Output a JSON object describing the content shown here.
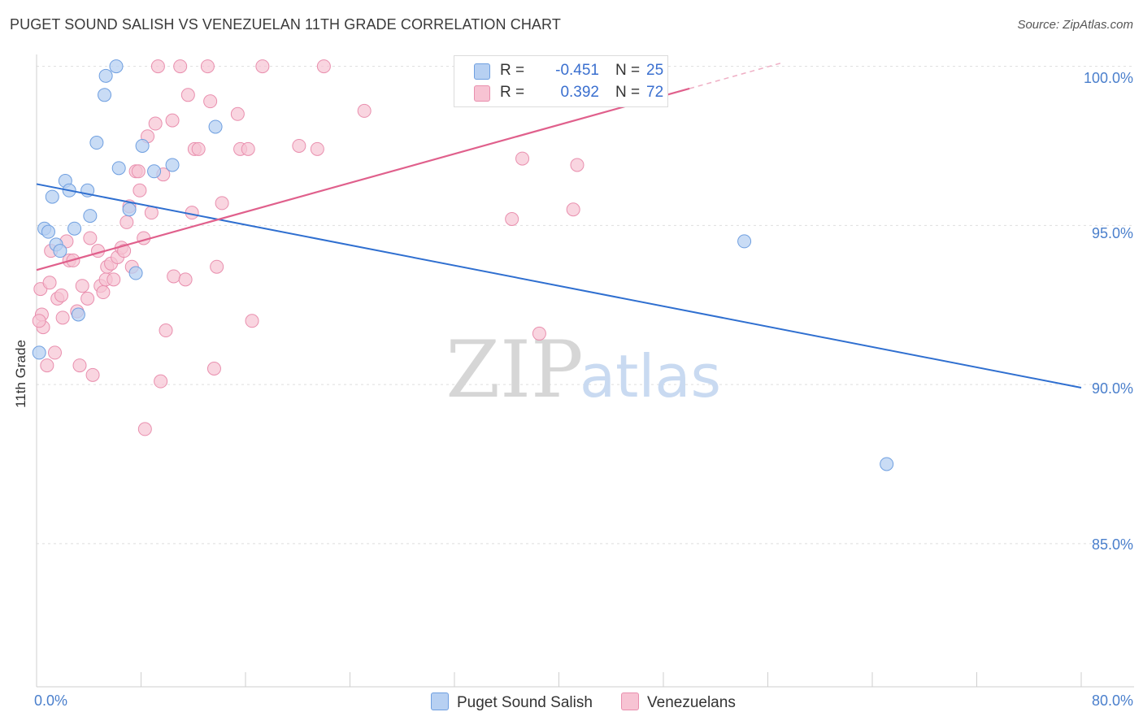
{
  "title": "PUGET SOUND SALISH VS VENEZUELAN 11TH GRADE CORRELATION CHART",
  "source": "Source: ZipAtlas.com",
  "watermark": {
    "zip": "ZIP",
    "atlas": "atlas"
  },
  "colors": {
    "blue_fill": "#b7d0f2",
    "blue_stroke": "#6f9fe0",
    "blue_line": "#2f6fd0",
    "pink_fill": "#f7c3d3",
    "pink_stroke": "#e98fae",
    "pink_line": "#e0608c",
    "text_blue": "#3a6fcf"
  },
  "legend": {
    "series1": {
      "r_label": "R =",
      "r_value": "-0.451",
      "n_label": "N =",
      "n_value": "25"
    },
    "series2": {
      "r_label": "R =",
      "r_value": "0.392",
      "n_label": "N =",
      "n_value": "72"
    }
  },
  "bottom_legend": {
    "series1": "Puget Sound Salish",
    "series2": "Venezuelans"
  },
  "chart_data": {
    "type": "scatter",
    "title": "PUGET SOUND SALISH VS VENEZUELAN 11TH GRADE CORRELATION CHART",
    "xlabel": "",
    "ylabel": "11th Grade",
    "xlim": [
      0,
      80
    ],
    "ylim": [
      80.5,
      100.5
    ],
    "x_tick_labels": [
      "0.0%",
      "80.0%"
    ],
    "y_ticks": [
      85,
      90,
      95,
      100
    ],
    "y_tick_labels": [
      "85.0%",
      "90.0%",
      "95.0%",
      "100.0%"
    ],
    "series": [
      {
        "name": "Puget Sound Salish",
        "r": -0.451,
        "n": 25,
        "trend": {
          "x": [
            0,
            80
          ],
          "y": [
            96.3,
            89.9
          ]
        },
        "points": [
          [
            0.2,
            91.0
          ],
          [
            0.6,
            94.9
          ],
          [
            0.9,
            94.8
          ],
          [
            1.2,
            95.9
          ],
          [
            1.5,
            94.4
          ],
          [
            1.8,
            94.2
          ],
          [
            2.2,
            96.4
          ],
          [
            2.5,
            96.1
          ],
          [
            2.9,
            94.9
          ],
          [
            3.2,
            92.2
          ],
          [
            3.9,
            96.1
          ],
          [
            4.1,
            95.3
          ],
          [
            4.6,
            97.6
          ],
          [
            5.2,
            99.1
          ],
          [
            5.3,
            99.7
          ],
          [
            6.1,
            100.0
          ],
          [
            6.3,
            96.8
          ],
          [
            7.1,
            95.5
          ],
          [
            7.6,
            93.5
          ],
          [
            8.1,
            97.5
          ],
          [
            9.0,
            96.7
          ],
          [
            10.4,
            96.9
          ],
          [
            13.7,
            98.1
          ],
          [
            54.2,
            94.5
          ],
          [
            65.1,
            87.5
          ]
        ]
      },
      {
        "name": "Venezuelans",
        "r": 0.392,
        "n": 72,
        "trend": {
          "x": [
            0,
            50
          ],
          "y": [
            93.6,
            99.3
          ],
          "dashed_to": {
            "x": 57,
            "y": 100.1
          }
        },
        "points": [
          [
            0.3,
            93.0
          ],
          [
            0.4,
            92.2
          ],
          [
            0.5,
            91.8
          ],
          [
            0.8,
            90.6
          ],
          [
            1.0,
            93.2
          ],
          [
            1.1,
            94.2
          ],
          [
            1.4,
            91.0
          ],
          [
            1.6,
            92.7
          ],
          [
            1.9,
            92.8
          ],
          [
            2.0,
            92.1
          ],
          [
            2.3,
            94.5
          ],
          [
            2.5,
            93.9
          ],
          [
            2.8,
            93.9
          ],
          [
            3.1,
            92.3
          ],
          [
            3.3,
            90.6
          ],
          [
            3.5,
            93.1
          ],
          [
            3.9,
            92.7
          ],
          [
            4.1,
            94.6
          ],
          [
            4.3,
            90.3
          ],
          [
            4.7,
            94.2
          ],
          [
            4.9,
            93.1
          ],
          [
            5.1,
            92.9
          ],
          [
            5.3,
            93.3
          ],
          [
            5.4,
            93.7
          ],
          [
            5.7,
            93.8
          ],
          [
            5.9,
            93.3
          ],
          [
            6.2,
            94.0
          ],
          [
            6.5,
            94.3
          ],
          [
            6.7,
            94.2
          ],
          [
            6.9,
            95.1
          ],
          [
            7.1,
            95.6
          ],
          [
            7.3,
            93.7
          ],
          [
            7.6,
            96.7
          ],
          [
            7.8,
            96.7
          ],
          [
            7.9,
            96.1
          ],
          [
            8.2,
            94.6
          ],
          [
            8.3,
            88.6
          ],
          [
            8.5,
            97.8
          ],
          [
            8.8,
            95.4
          ],
          [
            9.1,
            98.2
          ],
          [
            9.3,
            100.0
          ],
          [
            9.5,
            90.1
          ],
          [
            9.7,
            96.6
          ],
          [
            9.9,
            91.7
          ],
          [
            10.4,
            98.3
          ],
          [
            10.5,
            93.4
          ],
          [
            11.0,
            100.0
          ],
          [
            11.4,
            93.3
          ],
          [
            11.6,
            99.1
          ],
          [
            11.9,
            95.4
          ],
          [
            12.1,
            97.4
          ],
          [
            12.4,
            97.4
          ],
          [
            13.1,
            100.0
          ],
          [
            13.3,
            98.9
          ],
          [
            13.6,
            90.5
          ],
          [
            13.8,
            93.7
          ],
          [
            14.2,
            95.7
          ],
          [
            15.4,
            98.5
          ],
          [
            15.6,
            97.4
          ],
          [
            16.2,
            97.4
          ],
          [
            16.5,
            92.0
          ],
          [
            17.3,
            100.0
          ],
          [
            20.1,
            97.5
          ],
          [
            21.5,
            97.4
          ],
          [
            22.0,
            100.0
          ],
          [
            25.1,
            98.6
          ],
          [
            36.4,
            95.2
          ],
          [
            37.2,
            97.1
          ],
          [
            38.5,
            91.6
          ],
          [
            41.1,
            95.5
          ],
          [
            41.4,
            96.9
          ],
          [
            0.2,
            92.0
          ]
        ]
      }
    ]
  }
}
